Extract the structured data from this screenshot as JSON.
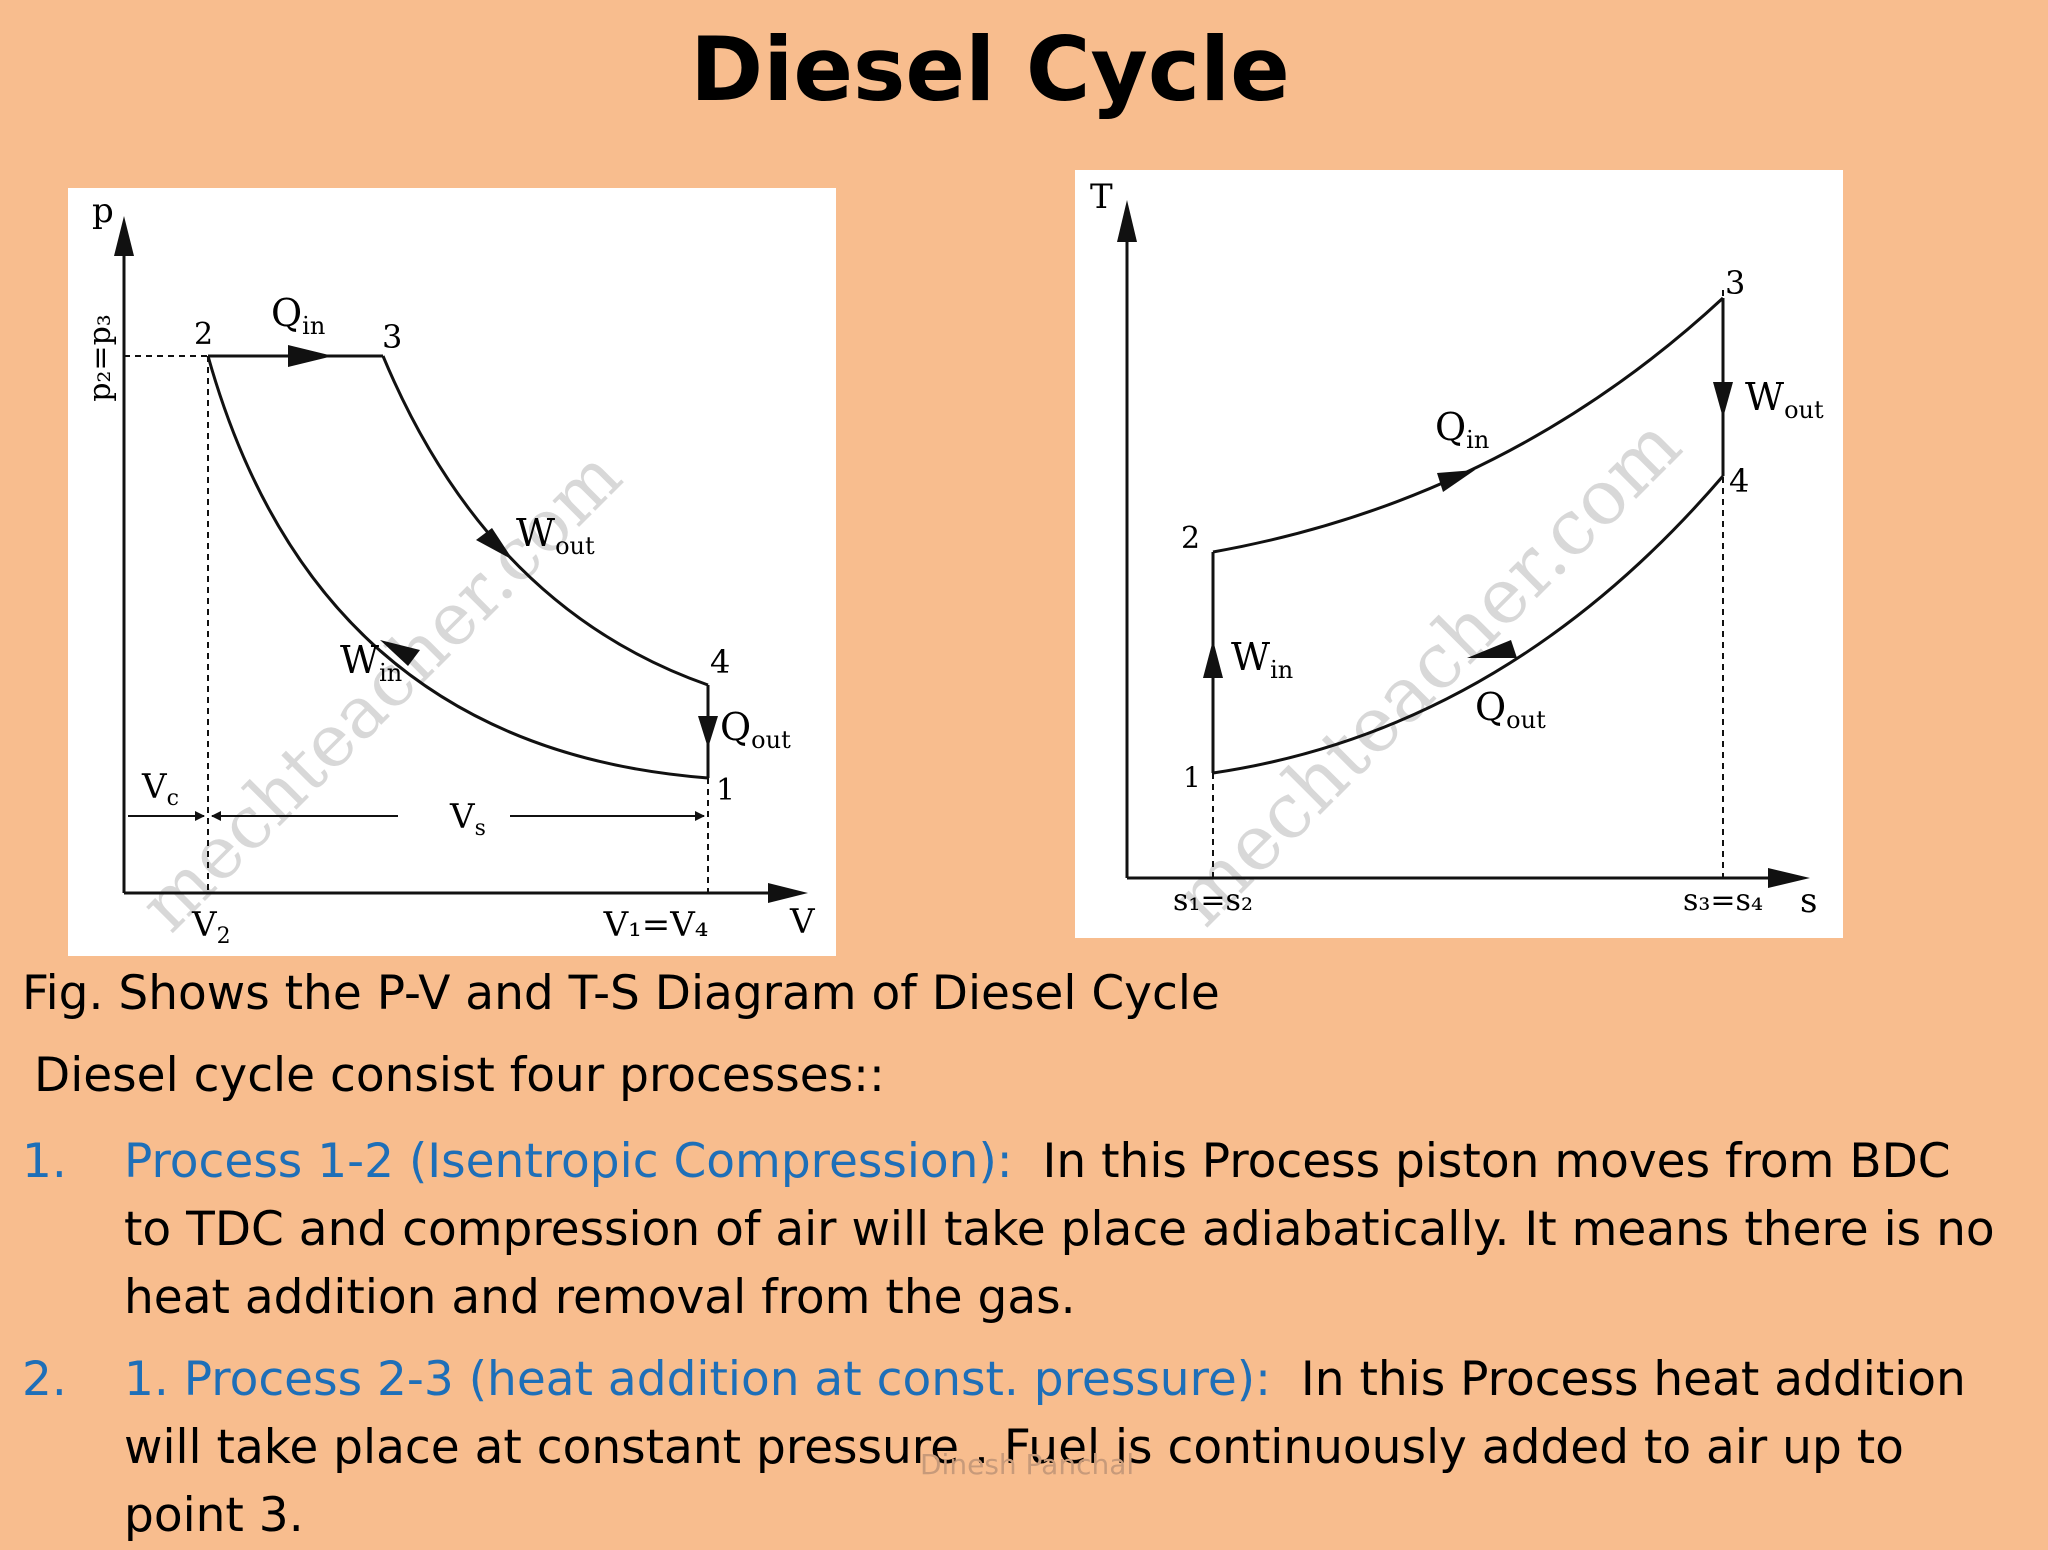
{
  "slide": {
    "title": "Diesel Cycle",
    "caption": "Fig. Shows the P-V and T-S Diagram of Diesel Cycle",
    "intro": "Diesel cycle consist four processes::",
    "items": [
      {
        "number": "1.",
        "lead": "Process 1-2 (Isentropic Compression):",
        "text": "In this Process piston moves from BDC to TDC  and compression of air will take place adiabatically. It means there is no heat addition and removal from the gas."
      },
      {
        "number": "2.",
        "lead": "1. Process 2-3  (heat addition at const. pressure):",
        "text": "In this Process heat addition will take place at constant pressure . Fuel is continuously added to air up to point 3."
      }
    ],
    "footer": "Dinesh Panchal"
  },
  "pv_diagram": {
    "y_axis": "p",
    "x_axis": "V",
    "pressure_label": "p₂=p₃",
    "points": {
      "p1": "1",
      "p2": "2",
      "p3": "3",
      "p4": "4"
    },
    "q_in": {
      "main": "Q",
      "sub": "in"
    },
    "q_out": {
      "main": "Q",
      "sub": "out"
    },
    "w_in": {
      "main": "W",
      "sub": "in"
    },
    "w_out": {
      "main": "W",
      "sub": "out"
    },
    "vc": {
      "main": "V",
      "sub": "c"
    },
    "vs": {
      "main": "V",
      "sub": "s"
    },
    "v2": {
      "main": "V",
      "sub": "2"
    },
    "v14": "V₁=V₄",
    "watermark": "mechteacher.com"
  },
  "ts_diagram": {
    "y_axis": "T",
    "x_axis": "s",
    "points": {
      "p1": "1",
      "p2": "2",
      "p3": "3",
      "p4": "4"
    },
    "q_in": {
      "main": "Q",
      "sub": "in"
    },
    "q_out": {
      "main": "Q",
      "sub": "out"
    },
    "w_in": {
      "main": "W",
      "sub": "in"
    },
    "w_out": {
      "main": "W",
      "sub": "out"
    },
    "s12": "s₁=s₂",
    "s34": "s₃=s₄",
    "watermark": "mechteacher.com"
  }
}
